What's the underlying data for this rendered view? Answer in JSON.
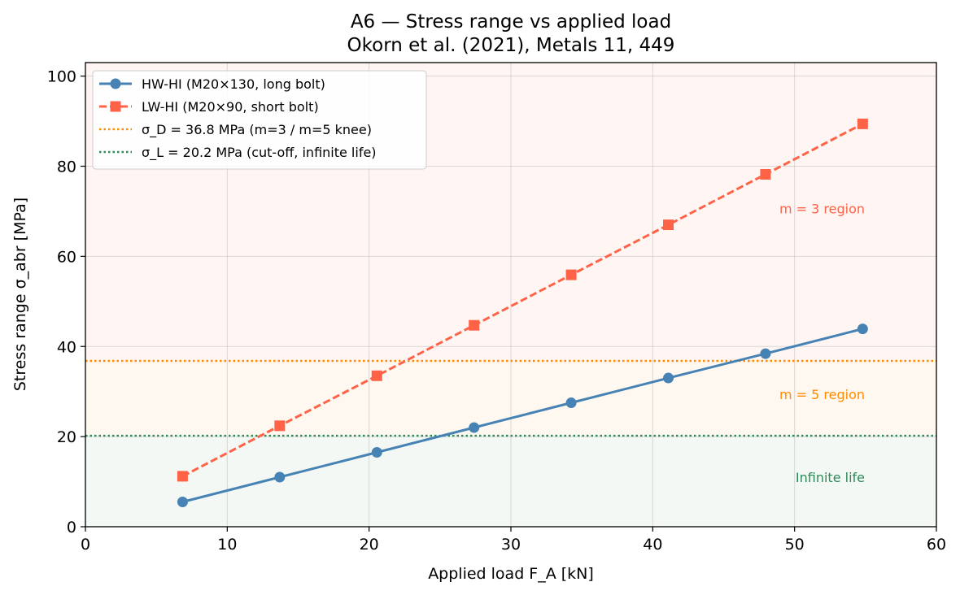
{
  "chart_data": {
    "type": "line",
    "title": "A6 — Stress range vs applied load",
    "subtitle": "Okorn et al. (2021), Metals 11, 449",
    "xlabel": "Applied load F_A [kN]",
    "ylabel": "Stress range σ_abr [MPa]",
    "xlim": [
      0,
      60
    ],
    "ylim": [
      0,
      103
    ],
    "xticks": [
      0,
      10,
      20,
      30,
      40,
      50,
      60
    ],
    "yticks": [
      0,
      20,
      40,
      60,
      80,
      100
    ],
    "grid": true,
    "legend_position": "top-left",
    "x": [
      6.85,
      13.7,
      20.55,
      27.4,
      34.25,
      41.1,
      47.95,
      54.8
    ],
    "series": [
      {
        "name": "HW-HI (M20×130, long bolt)",
        "values": [
          5.5,
          11.0,
          16.5,
          22.0,
          27.5,
          33.0,
          38.4,
          43.9
        ],
        "color": "#4682b4",
        "marker": "circle",
        "line_style": "solid"
      },
      {
        "name": "LW-HI (M20×90, short bolt)",
        "values": [
          11.2,
          22.4,
          33.5,
          44.7,
          55.9,
          67.0,
          78.2,
          89.4
        ],
        "color": "#ff6347",
        "marker": "square",
        "line_style": "dashed"
      }
    ],
    "reference_lines": [
      {
        "label": "σ_D = 36.8 MPa  (m=3 / m=5 knee)",
        "y": 36.8,
        "color": "#ff8c00",
        "line_style": "dotted"
      },
      {
        "label": "σ_L = 20.2 MPa  (cut-off, infinite life)",
        "y": 20.2,
        "color": "#2e8b57",
        "line_style": "dotted"
      }
    ],
    "regions": [
      {
        "label": "m = 3 region",
        "from": 36.8,
        "to": 103,
        "color": "#ff6347"
      },
      {
        "label": "m = 5 region",
        "from": 20.2,
        "to": 36.8,
        "color": "#ff8c00"
      },
      {
        "label": "Infinite life",
        "from": 0,
        "to": 20.2,
        "color": "#2e8b57"
      }
    ]
  }
}
